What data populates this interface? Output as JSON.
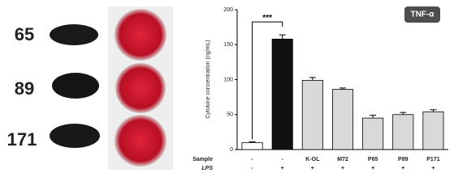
{
  "photos": {
    "labels": [
      "65",
      "89",
      "171"
    ]
  },
  "chart_data": {
    "type": "bar",
    "y_label": "Cytokine concentration (ng/mL)",
    "tag": "TNF-α",
    "annotation": "***",
    "row_labels": [
      "Sample",
      "LPS"
    ],
    "categories": [
      "-",
      "-",
      "K-OL",
      "M72",
      "P65",
      "P89",
      "P171"
    ],
    "lps": [
      "-",
      "+",
      "+",
      "+",
      "+",
      "+",
      "+"
    ],
    "values": [
      10,
      158,
      99,
      86,
      45,
      50,
      54
    ],
    "errors": [
      1,
      6,
      4,
      2,
      4,
      3,
      3
    ],
    "colors": [
      "#ffffff",
      "#111111",
      "#d9d9d9",
      "#d9d9d9",
      "#d9d9d9",
      "#d9d9d9",
      "#d9d9d9"
    ],
    "ylim": [
      0,
      200
    ],
    "yticks": [
      0,
      50,
      100,
      150,
      200
    ]
  }
}
